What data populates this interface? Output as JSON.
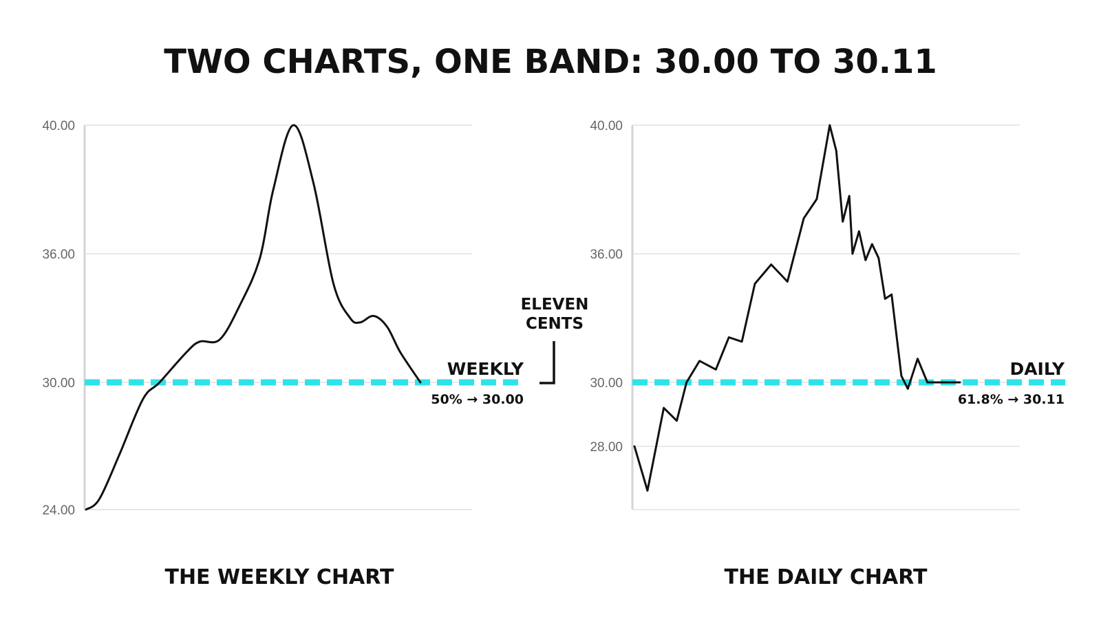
{
  "title": "TWO CHARTS, ONE BAND: 30.00 TO 30.11",
  "gap_annotation": {
    "line1": "ELEVEN",
    "line2": "CENTS"
  },
  "colors": {
    "band": "#2de3ea",
    "line": "#111111",
    "grid": "#e2e2e2",
    "axis": "#d4d4d4",
    "tick": "#666666"
  },
  "chart_data": [
    {
      "type": "line",
      "title": "THE WEEKLY CHART",
      "xlabel": "",
      "ylabel": "",
      "ylim": [
        24,
        40
      ],
      "yticks": [
        40,
        36,
        30,
        24
      ],
      "ytick_labels": [
        "40.00",
        "36.00",
        "30.00",
        "24.00"
      ],
      "grid": true,
      "x": [
        0,
        0.04,
        0.1,
        0.17,
        0.22,
        0.3,
        0.34,
        0.4,
        0.46,
        0.52,
        0.56,
        0.62,
        0.68,
        0.74,
        0.79,
        0.82,
        0.86,
        0.9,
        0.94,
        1.0
      ],
      "y": [
        24.0,
        24.5,
        26.6,
        29.2,
        30.0,
        31.4,
        31.9,
        32.0,
        33.6,
        35.8,
        38.0,
        40.0,
        38.2,
        34.6,
        33.0,
        32.8,
        33.1,
        32.6,
        31.4,
        30.0
      ],
      "band": {
        "value": 30.0,
        "label": "WEEKLY",
        "sublabel": "50% → 30.00"
      }
    },
    {
      "type": "line",
      "title": "THE DAILY CHART",
      "xlabel": "",
      "ylabel": "",
      "ylim": [
        26,
        40
      ],
      "yticks": [
        40,
        36,
        30,
        28
      ],
      "ytick_labels": [
        "40.00",
        "36.00",
        "30.00",
        "28.00"
      ],
      "grid": true,
      "x": [
        0,
        0.04,
        0.09,
        0.13,
        0.16,
        0.2,
        0.25,
        0.29,
        0.33,
        0.37,
        0.42,
        0.47,
        0.52,
        0.56,
        0.6,
        0.62,
        0.64,
        0.66,
        0.67,
        0.69,
        0.71,
        0.73,
        0.75,
        0.77,
        0.79,
        0.82,
        0.84,
        0.87,
        0.9,
        0.93,
        1.0
      ],
      "y": [
        28.0,
        26.6,
        29.2,
        28.8,
        30.0,
        31.0,
        30.6,
        32.1,
        31.9,
        34.6,
        35.5,
        34.7,
        37.1,
        37.7,
        40.0,
        39.2,
        37.0,
        37.8,
        36.0,
        36.7,
        35.7,
        36.3,
        35.8,
        33.9,
        34.1,
        30.3,
        29.8,
        31.1,
        30.0,
        30.0,
        30.0
      ],
      "band": {
        "value": 30.11,
        "label": "DAILY",
        "sublabel": "61.8% → 30.11"
      }
    }
  ]
}
